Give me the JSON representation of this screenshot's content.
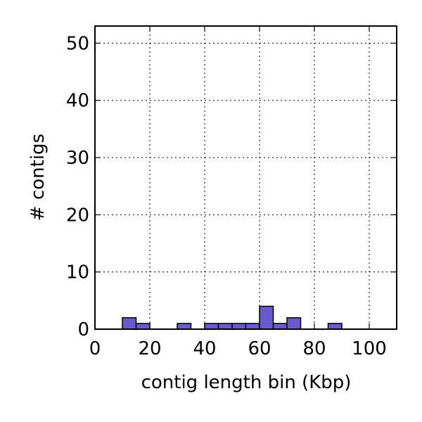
{
  "chart_data": {
    "type": "histogram",
    "xlabel": "contig length bin (Kbp)",
    "ylabel": "# contigs",
    "bins": [
      0,
      5,
      10,
      15,
      20,
      25,
      30,
      35,
      40,
      45,
      50,
      55,
      60,
      65,
      70,
      75,
      80,
      85,
      90,
      95,
      100,
      105,
      110
    ],
    "values": [
      0,
      0,
      2,
      1,
      0,
      0,
      1,
      0,
      1,
      1,
      1,
      1,
      4,
      1,
      2,
      0,
      0,
      1,
      0,
      0,
      0,
      0
    ],
    "color": "#6a5acd",
    "xlim": [
      0,
      110
    ],
    "ylim": [
      0,
      53
    ],
    "xticks": [
      0,
      20,
      40,
      60,
      80,
      100
    ],
    "yticks": [
      0,
      10,
      20,
      30,
      40,
      50
    ],
    "grid": true
  }
}
